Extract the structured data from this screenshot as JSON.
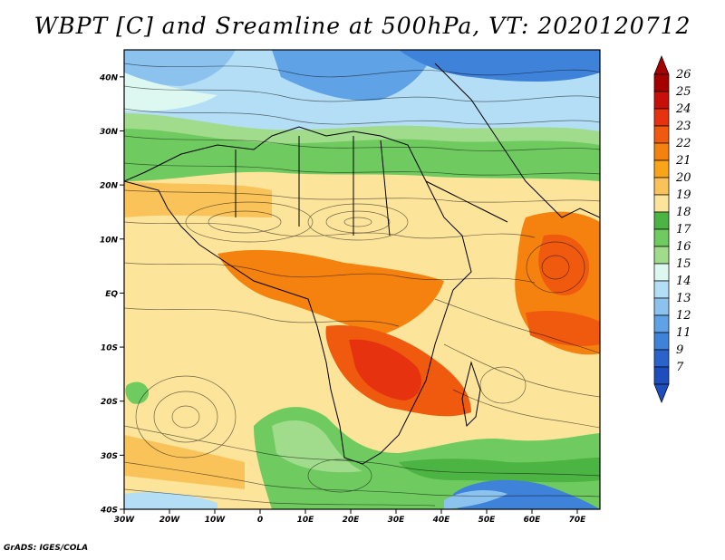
{
  "title": "WBPT [C] and Sreamline at 500hPa, VT: 2020120712",
  "credit": "GrADS: IGES/COLA",
  "map": {
    "lon_range": [
      -30,
      75
    ],
    "lat_range": [
      -40,
      45
    ],
    "lon_ticks": [
      {
        "lon": -30,
        "label": "30W"
      },
      {
        "lon": -20,
        "label": "20W"
      },
      {
        "lon": -10,
        "label": "10W"
      },
      {
        "lon": 0,
        "label": "0"
      },
      {
        "lon": 10,
        "label": "10E"
      },
      {
        "lon": 20,
        "label": "20E"
      },
      {
        "lon": 30,
        "label": "30E"
      },
      {
        "lon": 40,
        "label": "40E"
      },
      {
        "lon": 50,
        "label": "50E"
      },
      {
        "lon": 60,
        "label": "60E"
      },
      {
        "lon": 70,
        "label": "70E"
      }
    ],
    "lat_ticks": [
      {
        "lat": 40,
        "label": "40N"
      },
      {
        "lat": 30,
        "label": "30N"
      },
      {
        "lat": 20,
        "label": "20N"
      },
      {
        "lat": 10,
        "label": "10N"
      },
      {
        "lat": 0,
        "label": "EQ"
      },
      {
        "lat": -10,
        "label": "10S"
      },
      {
        "lat": -20,
        "label": "20S"
      },
      {
        "lat": -30,
        "label": "30S"
      },
      {
        "lat": -40,
        "label": "40S"
      }
    ]
  },
  "colorbar": {
    "levels": [
      {
        "label": "26",
        "color": "#a50000"
      },
      {
        "label": "25",
        "color": "#c8100a"
      },
      {
        "label": "24",
        "color": "#e6320f"
      },
      {
        "label": "23",
        "color": "#f05a0f"
      },
      {
        "label": "22",
        "color": "#f5820f"
      },
      {
        "label": "21",
        "color": "#faa519"
      },
      {
        "label": "20",
        "color": "#fac35a"
      },
      {
        "label": "19",
        "color": "#fde49b"
      },
      {
        "label": "18",
        "color": "#4bb443"
      },
      {
        "label": "17",
        "color": "#6fca60"
      },
      {
        "label": "16",
        "color": "#a0dc8c"
      },
      {
        "label": "15",
        "color": "#dcf8f0"
      },
      {
        "label": "14",
        "color": "#b4def5"
      },
      {
        "label": "13",
        "color": "#8cc3ee"
      },
      {
        "label": "12",
        "color": "#5fa2e6"
      },
      {
        "label": "11",
        "color": "#3f82da"
      },
      {
        "label": "9",
        "color": "#2a63cc"
      },
      {
        "label": "7",
        "color": "#1e4ebe"
      }
    ],
    "top_triangle_color": "#a50000",
    "bottom_triangle_color": "#1e4ebe"
  }
}
